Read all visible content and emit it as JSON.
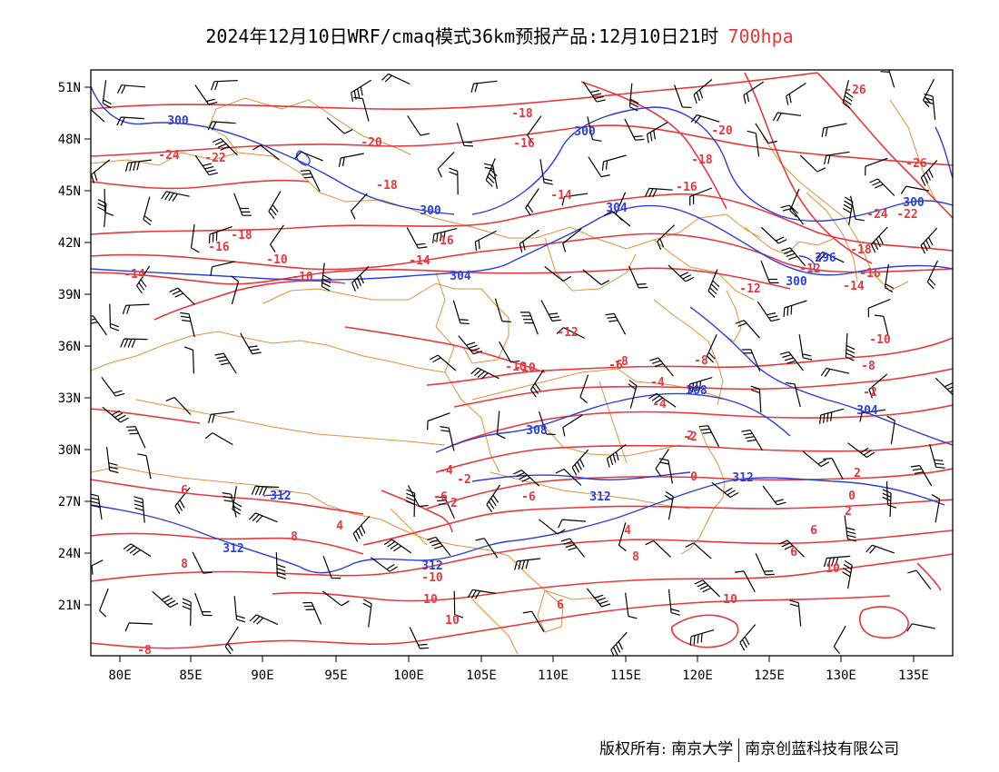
{
  "title": {
    "text": "2024年12月10日WRF/cmaq模式36km预报产品:12月10日21时",
    "level": "700hpa"
  },
  "colors": {
    "temperature": "#e8383d",
    "geopotential": "#2c3ee0",
    "boundary": "#e0913a",
    "wind": "#000000"
  },
  "axes": {
    "lat_labels": [
      "51N",
      "48N",
      "45N",
      "42N",
      "39N",
      "36N",
      "33N",
      "30N",
      "27N",
      "24N",
      "21N"
    ],
    "lon_labels": [
      "80E",
      "85E",
      "90E",
      "95E",
      "100E",
      "105E",
      "110E",
      "115E",
      "120E",
      "125E",
      "130E",
      "135E"
    ]
  },
  "temperature_labels": [
    "-26",
    "-18",
    "-20",
    "-16",
    "-24",
    "-22",
    "-18",
    "-20",
    "-18",
    "-16",
    "-14",
    "-26",
    "-24",
    "-22",
    "-18",
    "-16",
    "-14",
    "-12",
    "-10",
    "-16",
    "-14",
    "-18",
    "-16",
    "-10",
    "-14",
    "-12",
    "-12",
    "-10",
    "-8",
    "-10",
    "-8",
    "-6",
    "-4",
    "-2",
    "-4",
    "-2",
    "0",
    "2",
    "0",
    "2",
    "-4",
    "-2",
    "-6",
    "6",
    "4",
    "8",
    "6",
    "4",
    "6",
    "8",
    "10",
    "8",
    "10",
    "6",
    "10",
    "10",
    "-8",
    "-10",
    "-6",
    "2",
    "-2",
    "-8",
    "-10"
  ],
  "height_labels": [
    "300",
    "300",
    "300",
    "304",
    "304",
    "296",
    "300",
    "300",
    "308",
    "304",
    "308",
    "312",
    "312",
    "312",
    "312",
    "312"
  ],
  "footer": {
    "left": "版权所有: 南京大学",
    "right": "南京创蓝科技有限公司"
  }
}
